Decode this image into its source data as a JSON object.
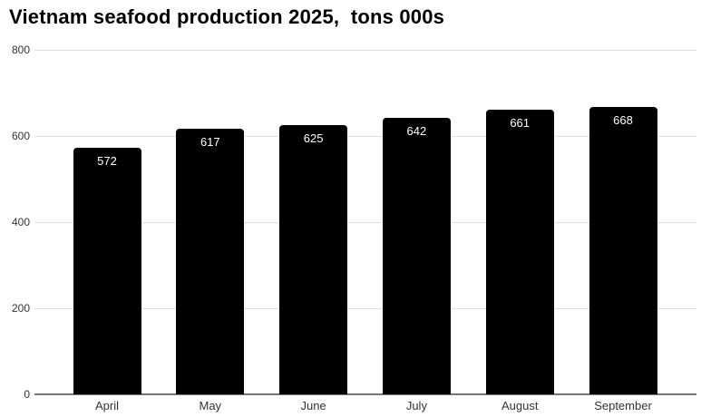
{
  "title": "Vietnam seafood production 2025,  tons 000s",
  "colors": {
    "background": "#ffffff",
    "bar": "#000000",
    "bar_value_label": "#ffffff",
    "gridline": "#e0e0e0",
    "baseline": "#757575",
    "axis_text": "#333333",
    "title_text": "#000000"
  },
  "chart_data": {
    "type": "bar",
    "title": "Vietnam seafood production 2025,  tons 000s",
    "categories": [
      "April",
      "May",
      "June",
      "July",
      "August",
      "September"
    ],
    "values": [
      572,
      617,
      625,
      642,
      661,
      668
    ],
    "value_labels": [
      "572",
      "617",
      "625",
      "642",
      "661",
      "668"
    ],
    "xlabel": "",
    "ylabel": "",
    "ylim": [
      0,
      800
    ],
    "yticks": [
      0,
      200,
      400,
      600,
      800
    ],
    "ytick_labels": [
      "0",
      "200",
      "400",
      "600",
      "800"
    ],
    "grid": true,
    "legend_position": "none"
  }
}
